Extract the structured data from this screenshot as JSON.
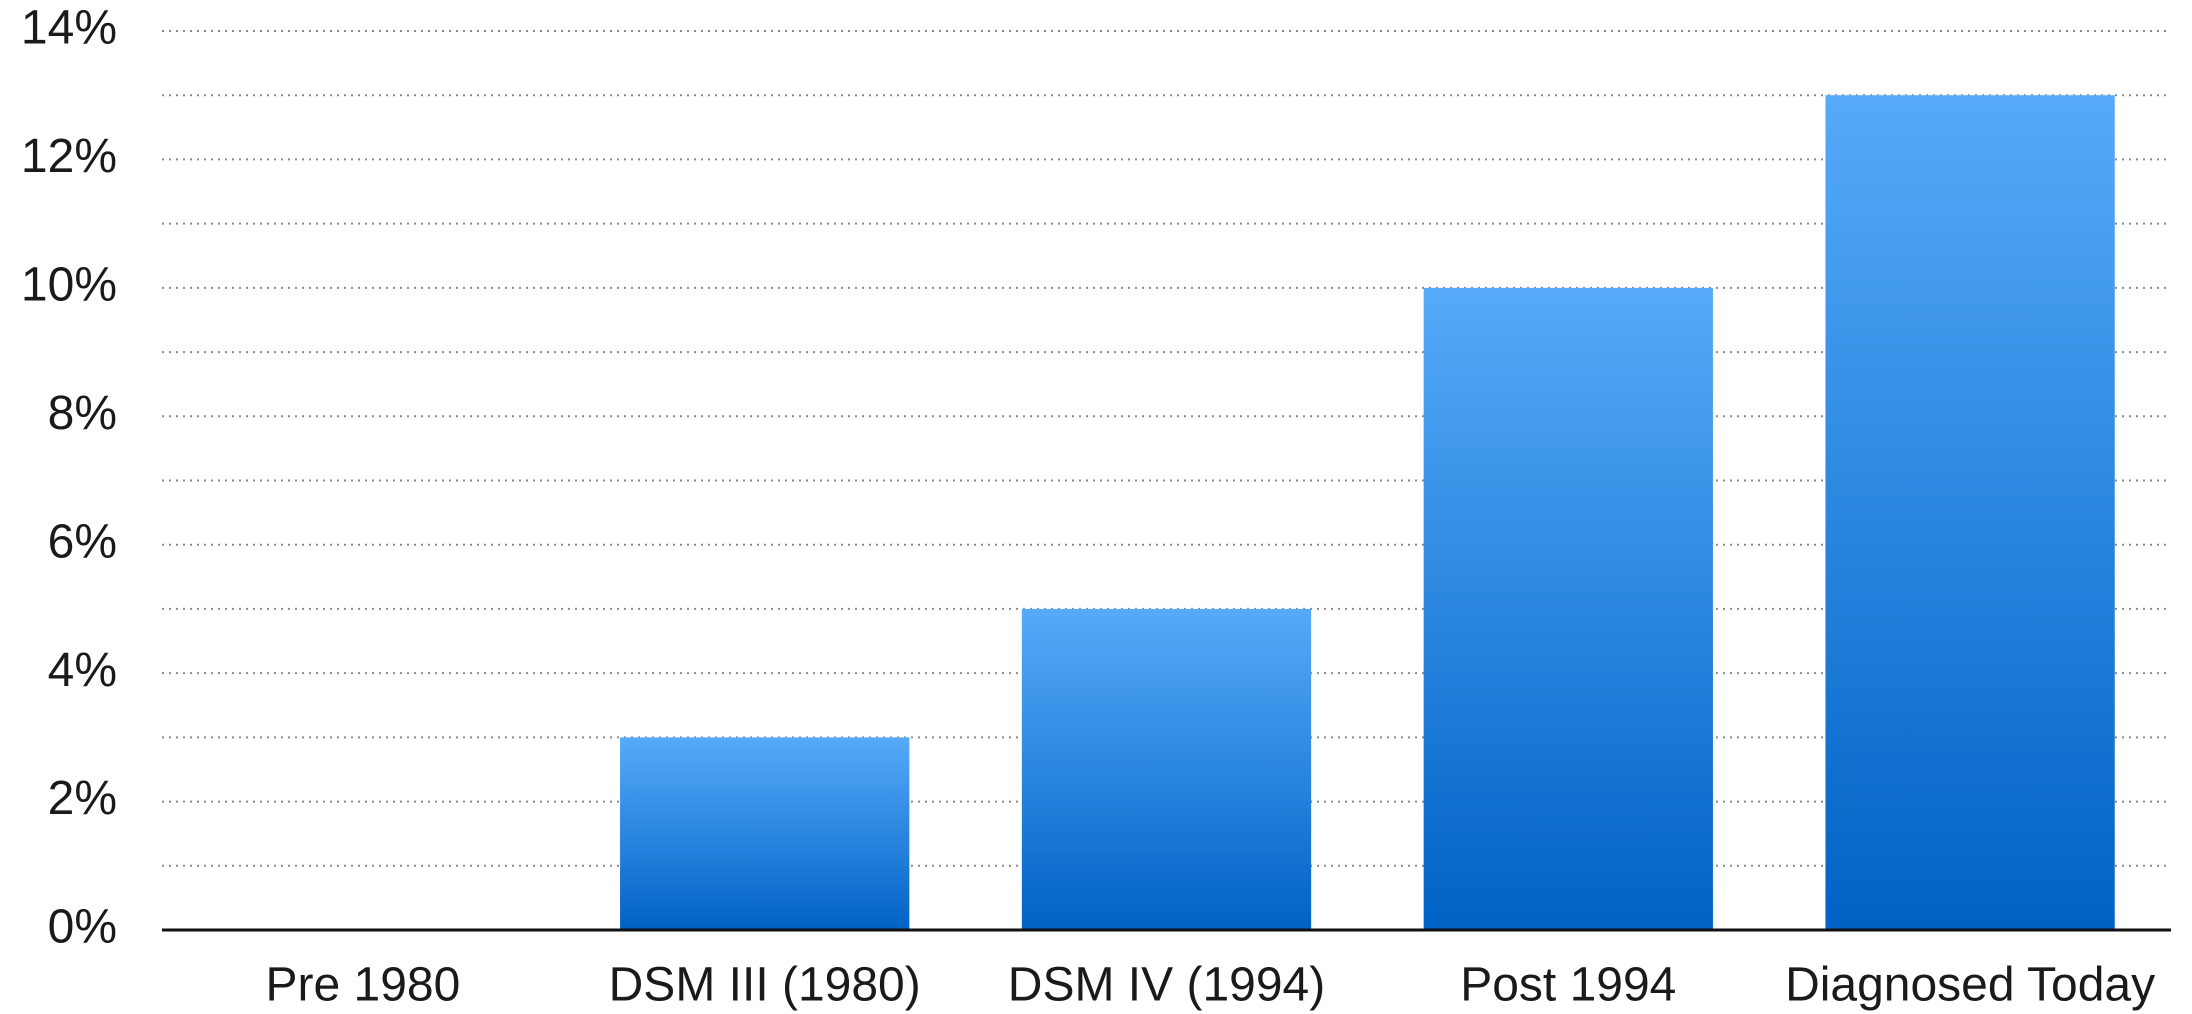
{
  "chart_data": {
    "type": "bar",
    "categories": [
      "Pre 1980",
      "DSM III (1980)",
      "DSM IV (1994)",
      "Post 1994",
      "Diagnosed Today"
    ],
    "values": [
      0,
      3,
      5,
      10,
      13
    ],
    "colors": [
      "#56aaf9",
      "#0062c5"
    ],
    "ylim": [
      0,
      14
    ],
    "yticks": [
      {
        "value": 0,
        "label": "0%"
      },
      {
        "value": 2,
        "label": "2%"
      },
      {
        "value": 4,
        "label": "4%"
      },
      {
        "value": 6,
        "label": "6%"
      },
      {
        "value": 8,
        "label": "8%"
      },
      {
        "value": 10,
        "label": "10%"
      },
      {
        "value": 12,
        "label": "12%"
      },
      {
        "value": 14,
        "label": "14%"
      }
    ],
    "minor_yticks": [
      1,
      3,
      5,
      7,
      9,
      11,
      13
    ],
    "grid": true
  }
}
